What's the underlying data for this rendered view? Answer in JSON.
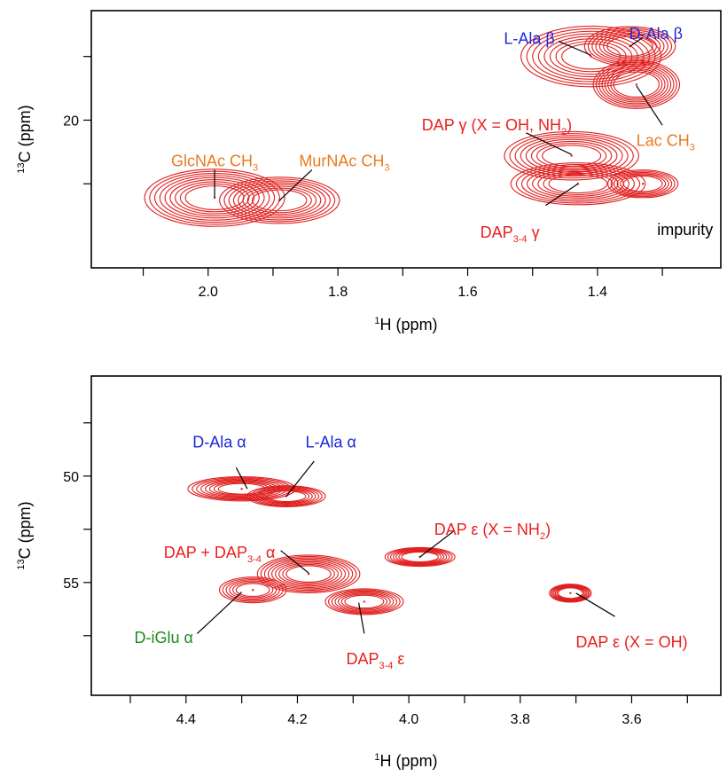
{
  "colors": {
    "contour": "#e01e1e",
    "annotation_red": "#e8201e",
    "annotation_blue": "#1e28d8",
    "annotation_orange": "#e87a1e",
    "annotation_green": "#1e8a1e",
    "annotation_black": "#000000"
  },
  "chart_data": [
    {
      "type": "contour",
      "xlabel": "H (ppm)",
      "xlabel_sup": "1",
      "ylabel": "C (ppm)",
      "ylabel_sup": "13",
      "x_reversed": true,
      "xlim": [
        2.18,
        1.21
      ],
      "ylim": [
        15.7,
        25.8
      ],
      "x_ticks": [
        2.0,
        1.8,
        1.6,
        1.4
      ],
      "y_ticks": [
        20
      ],
      "x_minor_ticks": [
        2.1,
        1.9,
        1.7,
        1.5,
        1.3
      ],
      "y_minor_ticks": [
        17.5,
        22.5
      ],
      "peaks": [
        {
          "x": 1.99,
          "y": 23.05,
          "rx": 0.045,
          "ry": 0.85,
          "levels": 9,
          "scale": 2.4
        },
        {
          "x": 1.89,
          "y": 23.15,
          "rx": 0.042,
          "ry": 0.75,
          "levels": 8,
          "scale": 2.2
        },
        {
          "x": 1.41,
          "y": 17.5,
          "rx": 0.045,
          "ry": 0.9,
          "levels": 8,
          "scale": 2.4
        },
        {
          "x": 1.35,
          "y": 17.1,
          "rx": 0.035,
          "ry": 0.7,
          "levels": 7,
          "scale": 2.0
        },
        {
          "x": 1.34,
          "y": 18.6,
          "rx": 0.035,
          "ry": 0.9,
          "levels": 8,
          "scale": 1.9
        },
        {
          "x": 1.44,
          "y": 21.4,
          "rx": 0.045,
          "ry": 0.75,
          "levels": 8,
          "scale": 2.3
        },
        {
          "x": 1.43,
          "y": 22.5,
          "rx": 0.045,
          "ry": 0.65,
          "levels": 8,
          "scale": 2.3
        },
        {
          "x": 1.33,
          "y": 22.5,
          "rx": 0.03,
          "ry": 0.55,
          "levels": 6,
          "scale": 1.8
        }
      ],
      "annotations": [
        {
          "label": "GlcNAc CH",
          "sub": "3",
          "color": "orange",
          "text_x": 1.99,
          "text_y": 21.6,
          "anchor": "middle",
          "line": [
            1.99,
            21.95,
            1.99,
            23.05
          ]
        },
        {
          "label": "MurNAc CH",
          "sub": "3",
          "color": "orange",
          "text_x": 1.79,
          "text_y": 21.6,
          "anchor": "middle",
          "line": [
            1.84,
            21.95,
            1.89,
            23.15
          ]
        },
        {
          "label": "L-Ala β",
          "color": "blue",
          "text_x": 1.505,
          "text_y": 16.8,
          "anchor": "middle",
          "line": [
            1.46,
            16.9,
            1.41,
            17.45
          ]
        },
        {
          "label": "D-Ala β",
          "color": "blue",
          "text_x": 1.31,
          "text_y": 16.6,
          "anchor": "middle",
          "line": [
            1.33,
            16.75,
            1.35,
            17.1
          ]
        },
        {
          "label": "DAP γ (X = OH, NH",
          "sub": "2",
          "tail": ")",
          "color": "red",
          "text_x": 1.555,
          "text_y": 20.2,
          "anchor": "middle",
          "line": [
            1.51,
            20.5,
            1.44,
            21.35
          ]
        },
        {
          "label": "Lac CH",
          "sub": "3",
          "color": "orange",
          "text_x": 1.295,
          "text_y": 20.8,
          "anchor": "middle",
          "line": [
            1.3,
            20.2,
            1.34,
            18.65
          ]
        },
        {
          "label": "DAP",
          "sub": "3-4",
          "tail": " γ",
          "color": "red",
          "text_x": 1.535,
          "text_y": 24.4,
          "anchor": "middle",
          "line": [
            1.48,
            23.35,
            1.43,
            22.5
          ]
        },
        {
          "label": "impurity",
          "color": "black",
          "text_x": 1.265,
          "text_y": 24.3,
          "anchor": "middle",
          "line": null
        }
      ]
    },
    {
      "type": "contour",
      "xlabel": "H (ppm)",
      "xlabel_sup": "1",
      "ylabel": "C (ppm)",
      "ylabel_sup": "13",
      "x_reversed": true,
      "xlim": [
        4.57,
        3.44
      ],
      "ylim": [
        45.3,
        60.3
      ],
      "x_ticks": [
        4.4,
        4.2,
        4.0,
        3.8,
        3.6
      ],
      "y_ticks": [
        50,
        55
      ],
      "x_minor_ticks": [
        4.5,
        4.3,
        4.1,
        3.9,
        3.7,
        3.5
      ],
      "y_minor_ticks": [
        47.5,
        52.5,
        57.5
      ],
      "peaks": [
        {
          "x": 4.3,
          "y": 50.6,
          "rx": 0.042,
          "ry": 0.45,
          "levels": 8,
          "scale": 2.3
        },
        {
          "x": 4.22,
          "y": 50.95,
          "rx": 0.035,
          "ry": 0.45,
          "levels": 7,
          "scale": 2.0
        },
        {
          "x": 3.98,
          "y": 53.8,
          "rx": 0.033,
          "ry": 0.42,
          "levels": 7,
          "scale": 1.9
        },
        {
          "x": 4.18,
          "y": 54.6,
          "rx": 0.04,
          "ry": 0.7,
          "levels": 9,
          "scale": 2.3
        },
        {
          "x": 4.28,
          "y": 55.35,
          "rx": 0.03,
          "ry": 0.55,
          "levels": 6,
          "scale": 2.0
        },
        {
          "x": 4.08,
          "y": 55.9,
          "rx": 0.035,
          "ry": 0.55,
          "levels": 7,
          "scale": 2.0
        },
        {
          "x": 3.71,
          "y": 55.5,
          "rx": 0.022,
          "ry": 0.45,
          "levels": 7,
          "scale": 1.7
        }
      ],
      "annotations": [
        {
          "label": "D-Ala α",
          "color": "blue",
          "text_x": 4.34,
          "text_y": 48.4,
          "anchor": "middle",
          "line": [
            4.31,
            49.6,
            4.29,
            50.6
          ]
        },
        {
          "label": "L-Ala α",
          "color": "blue",
          "text_x": 4.14,
          "text_y": 48.4,
          "anchor": "middle",
          "line": [
            4.17,
            49.3,
            4.22,
            50.95
          ]
        },
        {
          "label": "DAP + DAP",
          "sub": "3-4",
          "tail": " α",
          "color": "red",
          "text_x": 4.34,
          "text_y": 53.6,
          "anchor": "middle",
          "line": [
            4.23,
            53.5,
            4.18,
            54.55
          ]
        },
        {
          "label": "D-iGlu α",
          "color": "green",
          "text_x": 4.44,
          "text_y": 57.6,
          "anchor": "middle",
          "line": [
            4.38,
            57.4,
            4.3,
            55.45
          ]
        },
        {
          "label": "DAP",
          "sub": "3-4",
          "tail": " ε",
          "color": "red",
          "text_x": 4.06,
          "text_y": 58.6,
          "anchor": "middle",
          "line": [
            4.08,
            57.4,
            4.09,
            55.95
          ]
        },
        {
          "label": "DAP ε (X = NH",
          "sub": "2",
          "tail": ")",
          "color": "red",
          "text_x": 3.85,
          "text_y": 52.5,
          "anchor": "middle",
          "line": [
            3.92,
            52.6,
            3.98,
            53.8
          ]
        },
        {
          "label": "DAP ε (X = OH)",
          "color": "red",
          "text_x": 3.6,
          "text_y": 57.8,
          "anchor": "middle",
          "line": [
            3.63,
            56.6,
            3.7,
            55.5
          ]
        }
      ]
    }
  ]
}
